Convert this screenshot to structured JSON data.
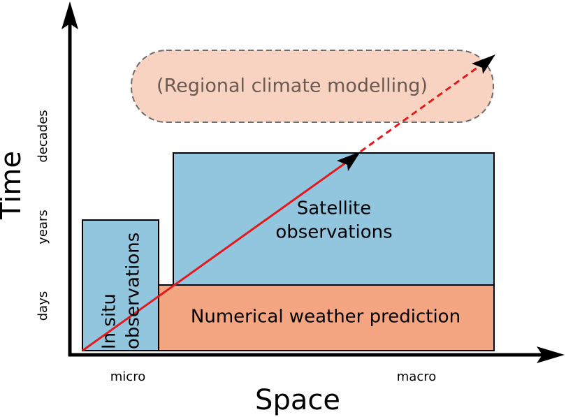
{
  "axes": {
    "y_label": "Time",
    "x_label": "Space",
    "y_ticks": [
      "days",
      "years",
      "decades"
    ],
    "x_ticks": [
      "micro",
      "macro"
    ]
  },
  "boxes": [
    {
      "lines": [
        "In situ",
        "observations"
      ]
    },
    {
      "lines": [
        "Numerical weather prediction"
      ]
    },
    {
      "lines": [
        "Satellite",
        "observations"
      ]
    },
    {
      "lines": [
        "(Regional climate modelling)"
      ]
    }
  ]
}
